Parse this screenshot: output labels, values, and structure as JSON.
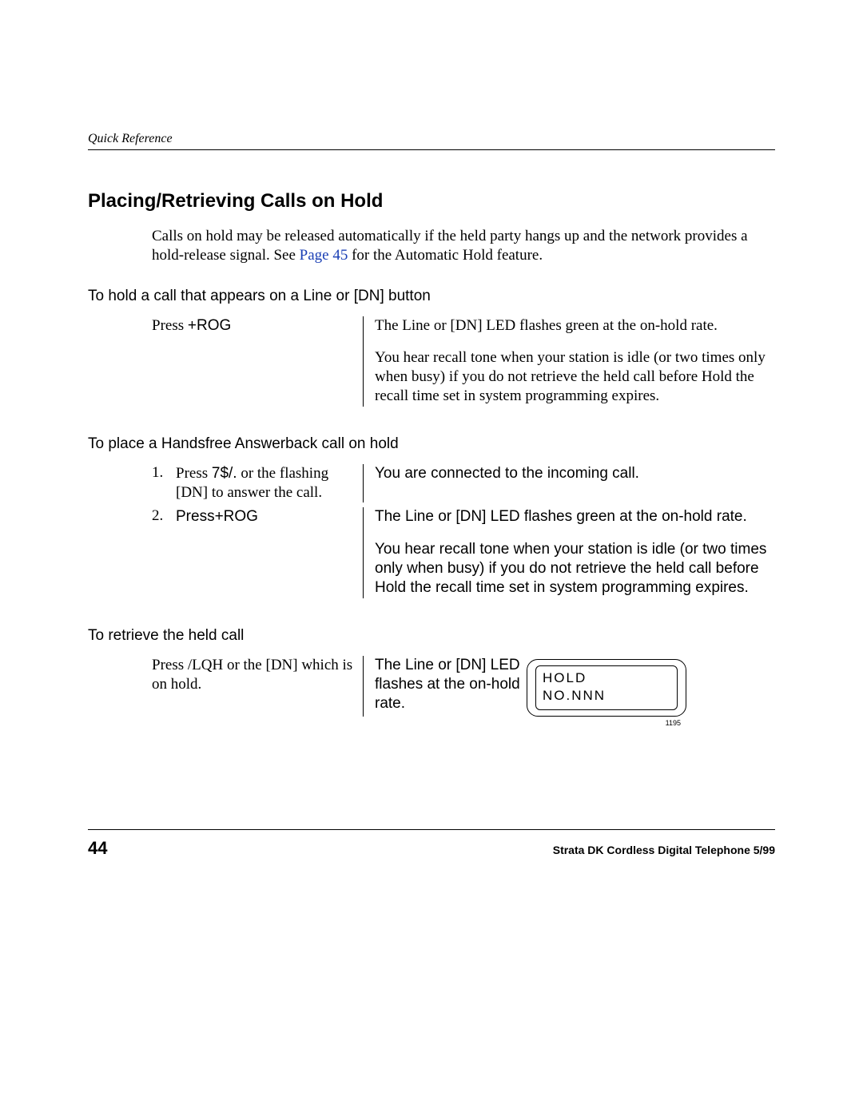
{
  "header": {
    "running": "Quick Reference"
  },
  "title": "Placing/Retrieving Calls on Hold",
  "intro": {
    "pre": "Calls on hold may be released automatically if the held party hangs up and the network provides a hold-release signal. See ",
    "link": "Page 45",
    "post": " for the Automatic Hold feature."
  },
  "sub1": "To hold a call that appears on a Line or [DN] button",
  "s1": {
    "left_a": "Press ",
    "left_b": "+ROG",
    "r1": "The Line or [DN] LED flashes green at the on-hold rate.",
    "r2": "You hear recall tone when your station is idle (or two times only when busy) if you do not retrieve the held call before  Hold the recall  time set in system programming expires."
  },
  "sub2": "To place a Handsfree Answerback call on hold",
  "s2a": {
    "num": "1.",
    "left_a": "Press ",
    "left_b": "7$/.",
    "left_c": " or the flashing [DN] to answer the call.",
    "right": "You are connected to the incoming call."
  },
  "s2b": {
    "num": "2.",
    "left_a": "Press",
    "left_b": "+ROG",
    "r1": "The Line or [DN] LED flashes green at the on-hold rate.",
    "r2": "You hear recall tone when your station is idle (or two times only when busy) if you do not retrieve the held call before  Hold the recall  time set in system programming expires."
  },
  "sub3": "To retrieve the held call",
  "s3": {
    "left_a": "Press ",
    "left_b": "/LQH",
    "left_c": " or the [DN] which is on hold.",
    "mid": "The Line or [DN] LED flashes at the on-hold rate.",
    "lcd1": "HOLD",
    "lcd2": "NO.NNN",
    "lcd_id": "1195"
  },
  "footer": {
    "page": "44",
    "text": "Strata DK Cordless Digital Telephone 5/99"
  }
}
